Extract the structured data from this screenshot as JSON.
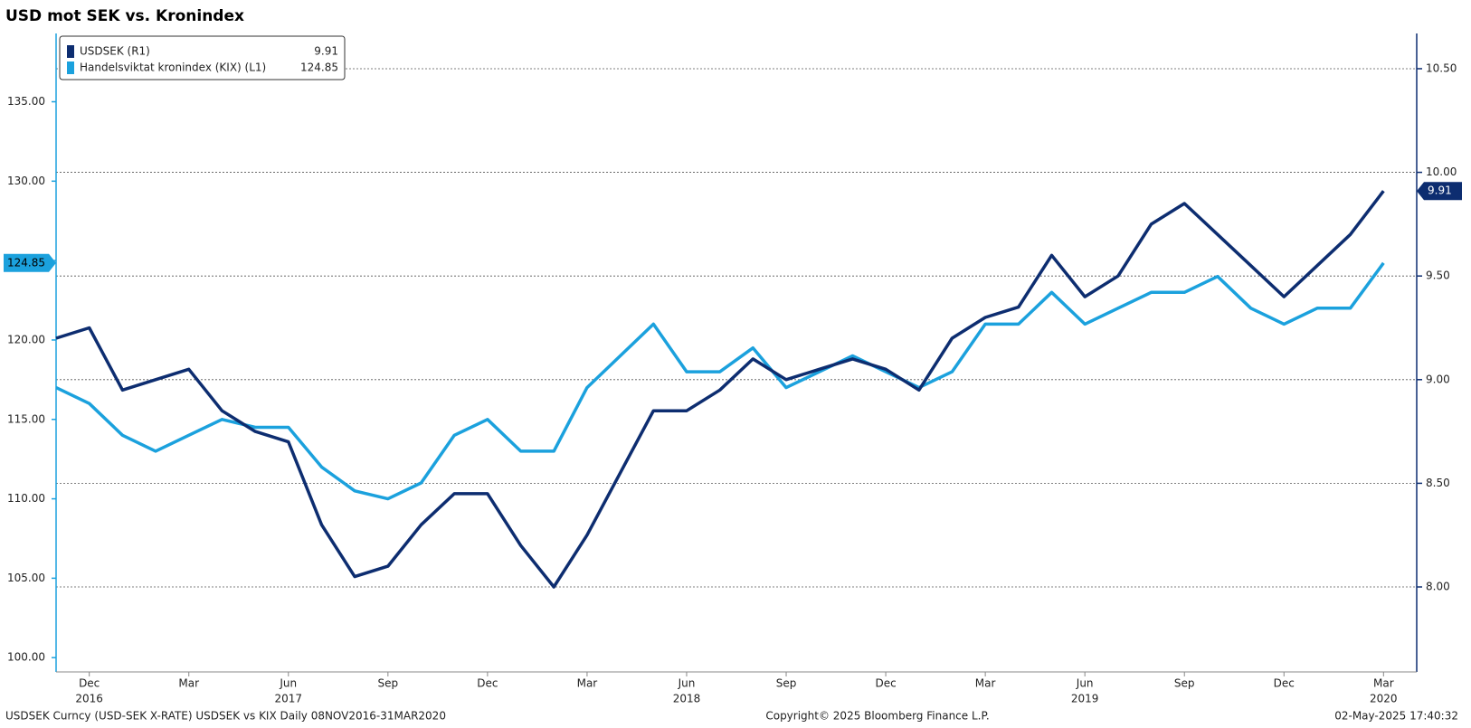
{
  "chart_data": {
    "type": "line",
    "title": "USD mot SEK vs. Kronindex",
    "x": [
      "2016-11",
      "2016-12",
      "2017-01",
      "2017-02",
      "2017-03",
      "2017-04",
      "2017-05",
      "2017-06",
      "2017-07",
      "2017-08",
      "2017-09",
      "2017-10",
      "2017-11",
      "2017-12",
      "2018-01",
      "2018-02",
      "2018-03",
      "2018-04",
      "2018-05",
      "2018-06",
      "2018-07",
      "2018-08",
      "2018-09",
      "2018-10",
      "2018-11",
      "2018-12",
      "2019-01",
      "2019-02",
      "2019-03",
      "2019-04",
      "2019-05",
      "2019-06",
      "2019-07",
      "2019-08",
      "2019-09",
      "2019-10",
      "2019-11",
      "2019-12",
      "2020-01",
      "2020-02",
      "2020-03"
    ],
    "xlim": [
      "2016-11",
      "2020-04"
    ],
    "xticks": [
      {
        "value": "2016-12",
        "label": "Dec"
      },
      {
        "value": "2017-03",
        "label": "Mar"
      },
      {
        "value": "2017-06",
        "label": "Jun"
      },
      {
        "value": "2017-09",
        "label": "Sep"
      },
      {
        "value": "2017-12",
        "label": "Dec"
      },
      {
        "value": "2018-03",
        "label": "Mar"
      },
      {
        "value": "2018-06",
        "label": "Jun"
      },
      {
        "value": "2018-09",
        "label": "Sep"
      },
      {
        "value": "2018-12",
        "label": "Dec"
      },
      {
        "value": "2019-03",
        "label": "Mar"
      },
      {
        "value": "2019-06",
        "label": "Jun"
      },
      {
        "value": "2019-09",
        "label": "Sep"
      },
      {
        "value": "2019-12",
        "label": "Dec"
      },
      {
        "value": "2020-03",
        "label": "Mar"
      }
    ],
    "xyears": [
      {
        "value": "2016-12",
        "label": "2016"
      },
      {
        "value": "2017-06",
        "label": "2017"
      },
      {
        "value": "2018-06",
        "label": "2018"
      },
      {
        "value": "2019-06",
        "label": "2019"
      },
      {
        "value": "2020-03",
        "label": "2020"
      }
    ],
    "ylim": [
      99.1,
      139.3
    ],
    "yticks": [
      {
        "value": 100,
        "label": "100.00"
      },
      {
        "value": 105,
        "label": "105.00"
      },
      {
        "value": 110,
        "label": "110.00"
      },
      {
        "value": 115,
        "label": "115.00"
      },
      {
        "value": 120,
        "label": "120.00"
      },
      {
        "value": 125,
        "label": "125.00"
      },
      {
        "value": 130,
        "label": "130.00"
      },
      {
        "value": 135,
        "label": "135.00"
      }
    ],
    "y2lim": [
      7.59,
      10.67
    ],
    "y2ticks": [
      {
        "value": 8,
        "label": "8.00"
      },
      {
        "value": 8.5,
        "label": "8.50"
      },
      {
        "value": 9,
        "label": "9.00"
      },
      {
        "value": 9.5,
        "label": "9.50"
      },
      {
        "value": 10,
        "label": "10.00"
      },
      {
        "value": 10.5,
        "label": "10.50"
      }
    ],
    "grid": true,
    "legend": "top-left",
    "series": [
      {
        "name": "USDSEK (R1)",
        "axis": "y2",
        "color": "#0d2d70",
        "values": [
          9.2,
          9.25,
          8.95,
          9.0,
          9.05,
          8.85,
          8.75,
          8.7,
          8.3,
          8.05,
          8.1,
          8.3,
          8.45,
          8.45,
          8.2,
          8.0,
          8.25,
          8.55,
          8.85,
          8.85,
          8.95,
          9.1,
          9.0,
          9.05,
          9.1,
          9.05,
          8.95,
          9.2,
          9.3,
          9.35,
          9.6,
          9.4,
          9.5,
          9.75,
          9.85,
          9.7,
          9.55,
          9.4,
          9.55,
          9.7,
          9.91
        ]
      },
      {
        "name": "Handelsviktat kronindex (KIX) (L1)",
        "axis": "y",
        "color": "#1ba1dd",
        "values": [
          117,
          116,
          114,
          113,
          114,
          115,
          114.5,
          114.5,
          112,
          110.5,
          110,
          111,
          114,
          115,
          113,
          113,
          117,
          119,
          121,
          118,
          118,
          119.5,
          117,
          118,
          119,
          118,
          117,
          118,
          121,
          121,
          123,
          121,
          122,
          123,
          123,
          124,
          122,
          121,
          122,
          122,
          124.85
        ]
      }
    ],
    "footer_left": "USDSEK Curncy (USD-SEK X-RATE) USDSEK vs KIX  Daily 08NOV2016-31MAR2020",
    "footer_center": "Copyright© 2025 Bloomberg Finance L.P.",
    "footer_right": "02-May-2025 17:40:32"
  }
}
